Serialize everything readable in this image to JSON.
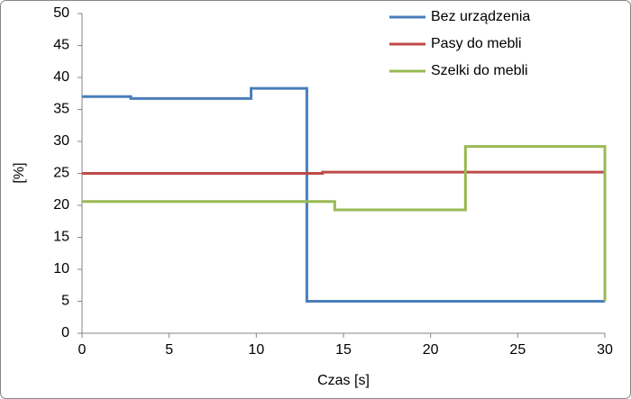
{
  "chart_data": {
    "type": "line",
    "xlabel": "Czas [s]",
    "ylabel": "[%]",
    "xlim": [
      0,
      30
    ],
    "xticks": [
      0,
      5,
      10,
      15,
      20,
      25,
      30
    ],
    "ylim": [
      0,
      50
    ],
    "yticks": [
      0,
      5,
      10,
      15,
      20,
      25,
      30,
      35,
      40,
      45,
      50
    ],
    "grid": false,
    "legend": "top-right",
    "series": [
      {
        "name": "Bez urządzenia",
        "color": "#4a7ebb",
        "x": [
          0,
          2.8,
          2.8,
          9.7,
          9.7,
          12.9,
          12.9,
          30
        ],
        "values": [
          37,
          37,
          36.7,
          36.7,
          38.3,
          38.3,
          5,
          5
        ]
      },
      {
        "name": "Pasy do mebli",
        "color": "#be4b48",
        "x": [
          0,
          13.8,
          13.8,
          30
        ],
        "values": [
          25,
          25,
          25.2,
          25.2
        ]
      },
      {
        "name": "Szelki do mebli",
        "color": "#98b954",
        "x": [
          0,
          14.5,
          14.5,
          22,
          22,
          30,
          30
        ],
        "values": [
          20.6,
          20.6,
          19.3,
          19.3,
          29.2,
          29.2,
          5
        ]
      }
    ]
  }
}
